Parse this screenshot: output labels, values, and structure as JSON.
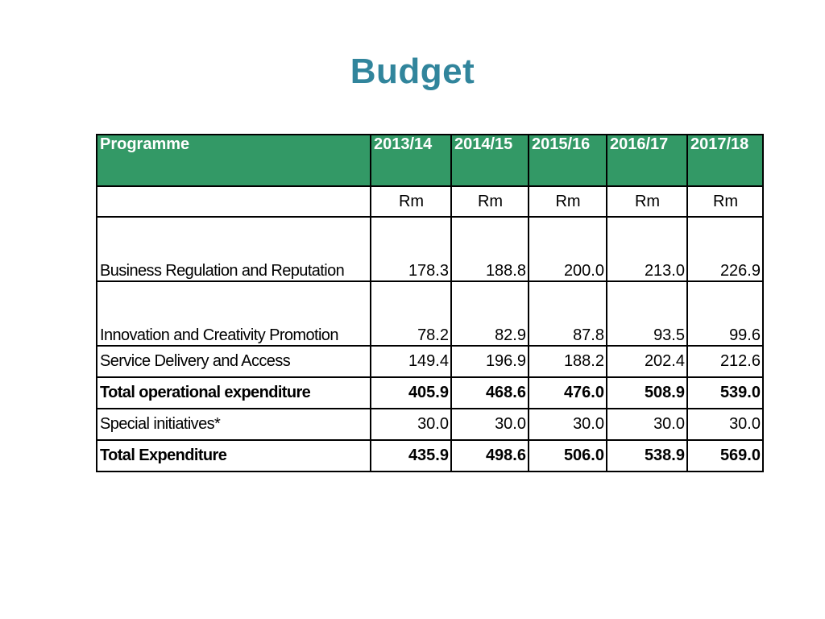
{
  "title": "Budget",
  "table": {
    "headers": [
      "Programme",
      "2013/14",
      "2014/15",
      "2015/16",
      "2016/17",
      "2017/18"
    ],
    "units": [
      "",
      "Rm",
      "Rm",
      "Rm",
      "Rm",
      "Rm"
    ],
    "rows": [
      {
        "label": "Business Regulation and Reputation",
        "values": [
          "178.3",
          "188.8",
          "200.0",
          "213.0",
          "226.9"
        ]
      },
      {
        "label": "Innovation and Creativity Promotion",
        "values": [
          "78.2",
          "82.9",
          "87.8",
          "93.5",
          "99.6"
        ]
      },
      {
        "label": "Service Delivery and Access",
        "values": [
          "149.4",
          "196.9",
          "188.2",
          "202.4",
          "212.6"
        ]
      },
      {
        "label": "Total operational expenditure",
        "values": [
          "405.9",
          "468.6",
          "476.0",
          "508.9",
          "539.0"
        ]
      },
      {
        "label": "Special initiatives*",
        "values": [
          "30.0",
          "30.0",
          "30.0",
          "30.0",
          "30.0"
        ]
      },
      {
        "label": "Total Expenditure",
        "values": [
          "435.9",
          "498.6",
          "506.0",
          "538.9",
          "569.0"
        ]
      }
    ]
  },
  "colors": {
    "title": "#31859c",
    "header_background": "#339966",
    "header_text": "#ffffff"
  }
}
